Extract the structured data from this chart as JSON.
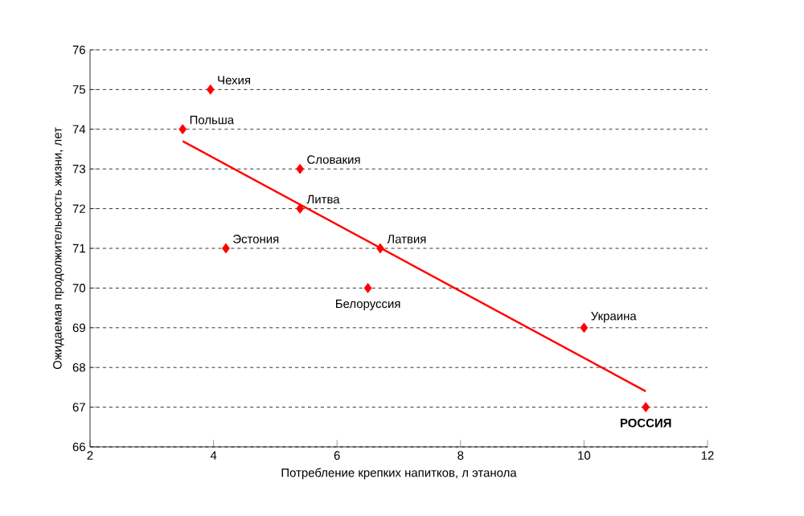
{
  "chart_data": {
    "type": "scatter",
    "xlabel": "Потребление крепких напитков, л этанола",
    "ylabel": "Ожидаемая продолжительность жизни, лет",
    "series": [
      {
        "color": "#ff0000",
        "marker": "diamond",
        "x": [
          3.95,
          3.5,
          5.4,
          5.4,
          4.2,
          6.7,
          6.5,
          10,
          11
        ],
        "values": [
          75,
          74,
          73,
          72,
          71,
          71,
          70,
          69,
          67
        ]
      },
      {
        "type": "line",
        "color": "#ff0000",
        "marker": "none",
        "line_style": "solid",
        "x": [
          3.5,
          11
        ],
        "values": [
          73.7,
          67.4
        ]
      }
    ],
    "annotations": [
      {
        "text": "Чехия",
        "x": 3.95,
        "y": 75
      },
      {
        "text": "Польша",
        "x": 3.5,
        "y": 74
      },
      {
        "text": "Словакия",
        "x": 5.4,
        "y": 73
      },
      {
        "text": "Литва",
        "x": 5.4,
        "y": 72
      },
      {
        "text": "Эстония",
        "x": 4.2,
        "y": 71
      },
      {
        "text": "Латвия",
        "x": 6.7,
        "y": 71
      },
      {
        "text": "Белоруссия",
        "x": 6.5,
        "y": 70
      },
      {
        "text": "Украина",
        "x": 10,
        "y": 69
      },
      {
        "text": "**РОССИЯ**",
        "x": 11,
        "y": 67
      }
    ],
    "xlim": [
      2,
      12
    ],
    "ylim": [
      66,
      76
    ],
    "xticks": [
      2,
      4,
      6,
      8,
      10,
      12
    ],
    "yticks": [
      66,
      67,
      68,
      69,
      70,
      71,
      72,
      73,
      74,
      75,
      76
    ],
    "grid": "y"
  }
}
